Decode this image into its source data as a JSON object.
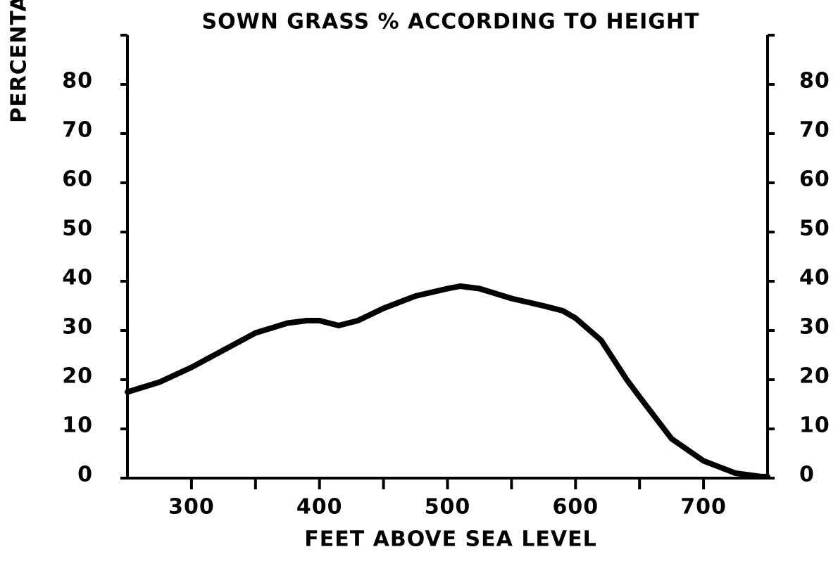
{
  "chart_data": {
    "type": "line",
    "title": "SOWN  GRASS % ACCORDING  TO  HEIGHT",
    "x_label": "FEET ABOVE SEA LEVEL",
    "y_label": "PERCENTAGE",
    "x": [
      250,
      275,
      300,
      325,
      350,
      375,
      390,
      400,
      415,
      430,
      450,
      475,
      500,
      510,
      525,
      550,
      575,
      590,
      600,
      620,
      640,
      650,
      675,
      700,
      725,
      745,
      750
    ],
    "series": [
      {
        "name": "Sown grass",
        "color": "#000000",
        "values": [
          17.5,
          19.5,
          22.5,
          26,
          29.5,
          31.5,
          32,
          32,
          31,
          32,
          34.5,
          37,
          38.5,
          39,
          38.5,
          36.5,
          35,
          34,
          32.5,
          28,
          20,
          16.5,
          8,
          3.5,
          1,
          0.3,
          0.3
        ]
      }
    ],
    "xlim": [
      250,
      750
    ],
    "xticks": [
      300,
      400,
      500,
      600,
      700
    ],
    "xminorticks": [
      350,
      450,
      550,
      650
    ],
    "ylim": [
      0,
      90
    ],
    "yticks": [
      0,
      10,
      20,
      30,
      40,
      50,
      60,
      70,
      80
    ],
    "y2lim": [
      0,
      90
    ],
    "y2ticks": [
      0,
      10,
      20,
      30,
      40,
      50,
      60,
      70,
      80
    ],
    "grid": false
  }
}
